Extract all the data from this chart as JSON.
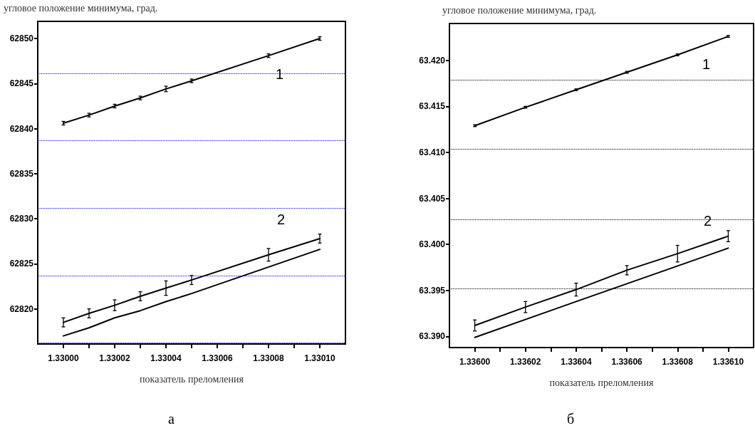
{
  "chart_data": [
    {
      "type": "line",
      "ylabel": "угловое положение минимума, град.",
      "xlabel": "показатель преломления",
      "xlim": [
        1.32999,
        1.33011
      ],
      "ylim": [
        62816.1,
        62851.9
      ],
      "xticks": [
        {
          "value": 1.33,
          "label": "1.33000"
        },
        {
          "value": 1.33001,
          "label": null
        },
        {
          "value": 1.33002,
          "label": "1.33002"
        },
        {
          "value": 1.33003,
          "label": null
        },
        {
          "value": 1.33004,
          "label": "1.33004"
        },
        {
          "value": 1.33005,
          "label": null
        },
        {
          "value": 1.33006,
          "label": "1.33006"
        },
        {
          "value": 1.33007,
          "label": null
        },
        {
          "value": 1.33008,
          "label": "1.33008"
        },
        {
          "value": 1.33009,
          "label": null
        },
        {
          "value": 1.3301,
          "label": "1.33010"
        }
      ],
      "yticks": [
        62820,
        62825,
        62830,
        62835,
        62840,
        62845,
        62850
      ],
      "marker": "none",
      "line_style": "solid",
      "series": [
        {
          "color": "#000000",
          "x": [
            1.33,
            1.33001,
            1.33002,
            1.33003,
            1.33004,
            1.33005,
            1.33008,
            1.3301
          ],
          "values": [
            62840.6,
            62841.5,
            62842.5,
            62843.4,
            62844.4,
            62845.3,
            62848.1,
            62850.0
          ],
          "errors": [
            0.2,
            0.2,
            0.2,
            0.2,
            0.3,
            0.2,
            0.2,
            0.2
          ]
        },
        {
          "color": "#000000",
          "x": [
            1.33,
            1.33001,
            1.33002,
            1.33003,
            1.33004,
            1.33005,
            1.33008,
            1.3301
          ],
          "values": [
            62818.5,
            62819.5,
            62820.4,
            62821.4,
            62822.3,
            62823.2,
            62826.0,
            62827.8
          ],
          "errors": [
            0.5,
            0.5,
            0.6,
            0.5,
            0.8,
            0.5,
            0.7,
            0.5
          ]
        },
        {
          "color": "#000000",
          "x": [
            1.33,
            1.33001,
            1.33002,
            1.33003,
            1.33004,
            1.33005,
            1.3301
          ],
          "values": [
            62817.0,
            62817.9,
            62819.0,
            62819.8,
            62820.8,
            62821.7,
            62826.6
          ]
        }
      ],
      "ref_lines": [
        {
          "axis": "y",
          "value": 62846.1,
          "color": "#0000ff",
          "line_style": "dotted"
        },
        {
          "axis": "y",
          "value": 62838.7,
          "color": "#0000ff",
          "line_style": "dotted"
        },
        {
          "axis": "y",
          "value": 62831.2,
          "color": "#0000ff",
          "line_style": "dotted"
        },
        {
          "axis": "y",
          "value": 62823.7,
          "color": "#0000ff",
          "line_style": "dotted"
        },
        {
          "axis": "y",
          "value": 62816.2,
          "color": "#0000ff",
          "line_style": "dotted"
        }
      ],
      "annotations": [
        "1",
        "2",
        "а"
      ]
    },
    {
      "type": "line",
      "ylabel": "угловое положение минимума, град.",
      "xlabel": "показатель преломления",
      "xlim": [
        1.33599,
        1.33611
      ],
      "ylim": [
        63.3888,
        63.424
      ],
      "xticks": [
        {
          "value": 1.336,
          "label": "1.33600"
        },
        {
          "value": 1.33601,
          "label": null
        },
        {
          "value": 1.33602,
          "label": "1.33602"
        },
        {
          "value": 1.33603,
          "label": null
        },
        {
          "value": 1.33604,
          "label": "1.33604"
        },
        {
          "value": 1.33605,
          "label": null
        },
        {
          "value": 1.33606,
          "label": "1.33606"
        },
        {
          "value": 1.33607,
          "label": null
        },
        {
          "value": 1.33608,
          "label": "1.33608"
        },
        {
          "value": 1.33609,
          "label": null
        },
        {
          "value": 1.3361,
          "label": "1.33610"
        }
      ],
      "yticks": [
        {
          "value": 63.39,
          "label": "63.390"
        },
        63.395,
        {
          "value": 63.4,
          "label": "63.400"
        },
        63.405,
        {
          "value": 63.41,
          "label": "63.410"
        },
        63.415,
        {
          "value": 63.42,
          "label": "63.420"
        }
      ],
      "marker": "none",
      "line_style": "solid",
      "series": [
        {
          "color": "#000000",
          "x": [
            1.336,
            1.33602,
            1.33604,
            1.33606,
            1.33608,
            1.3361
          ],
          "values": [
            63.4129,
            63.4149,
            63.4168,
            63.4187,
            63.4206,
            63.4226
          ],
          "errors": [
            0.0001,
            0.0001,
            0.0001,
            0.0001,
            0.0001,
            0.0001
          ]
        },
        {
          "color": "#000000",
          "x": [
            1.336,
            1.33602,
            1.33604,
            1.33606,
            1.33608,
            1.3361
          ],
          "values": [
            63.3912,
            63.3932,
            63.3951,
            63.3972,
            63.399,
            63.4009
          ],
          "errors": [
            0.0006,
            0.0006,
            0.0007,
            0.0005,
            0.0009,
            0.0006
          ]
        },
        {
          "color": "#000000",
          "x": [
            1.336,
            1.33604,
            1.3361
          ],
          "values": [
            63.3899,
            63.3938,
            63.3996
          ]
        }
      ],
      "ref_lines": [
        {
          "axis": "y",
          "value": 63.4179,
          "color": "#000000",
          "line_style": "dotted"
        },
        {
          "axis": "y",
          "value": 63.4104,
          "color": "#000000",
          "line_style": "dotted"
        },
        {
          "axis": "y",
          "value": 63.4027,
          "color": "#000000",
          "line_style": "dotted"
        },
        {
          "axis": "y",
          "value": 63.3952,
          "color": "#000000",
          "line_style": "dotted"
        }
      ],
      "annotations": [
        "1",
        "2",
        "б"
      ]
    }
  ]
}
